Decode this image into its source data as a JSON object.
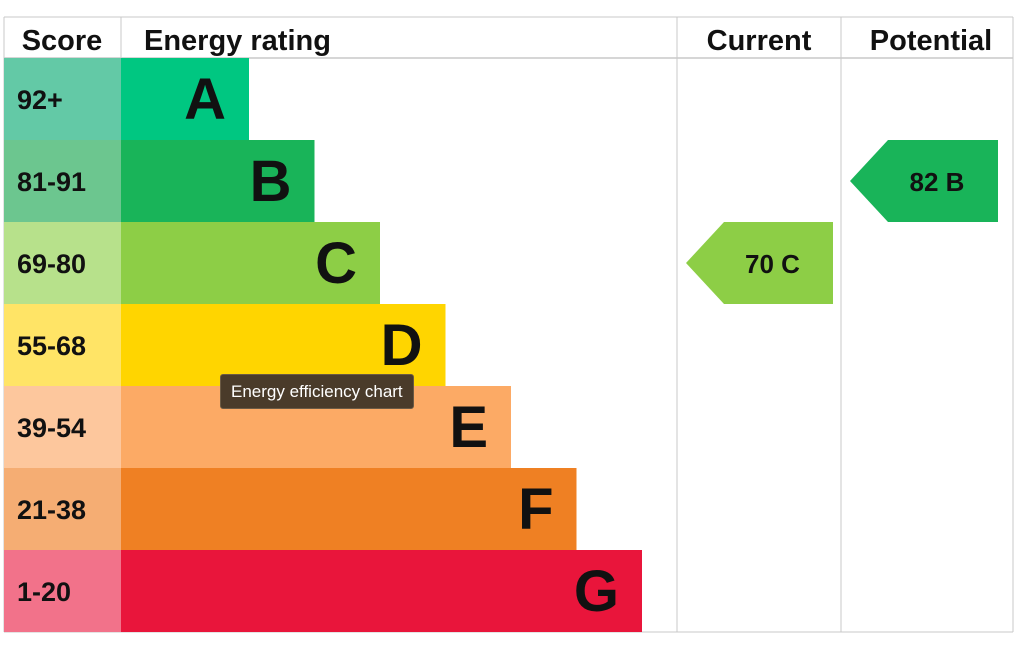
{
  "chart_data": {
    "type": "table",
    "headers": {
      "score": "Score",
      "rating": "Energy rating",
      "current": "Current",
      "potential": "Potential"
    },
    "bands": [
      {
        "range": "92+",
        "letter": "A",
        "color": "#00c781",
        "score_bg": "#63c9a6"
      },
      {
        "range": "81-91",
        "letter": "B",
        "color": "#19b459",
        "score_bg": "#6cc68f"
      },
      {
        "range": "69-80",
        "letter": "C",
        "color": "#8dce46",
        "score_bg": "#b7e18b"
      },
      {
        "range": "55-68",
        "letter": "D",
        "color": "#ffd500",
        "score_bg": "#ffe466"
      },
      {
        "range": "39-54",
        "letter": "E",
        "color": "#fcaa65",
        "score_bg": "#fdc79d"
      },
      {
        "range": "21-38",
        "letter": "F",
        "color": "#ef8023",
        "score_bg": "#f5ad73"
      },
      {
        "range": "1-20",
        "letter": "G",
        "color": "#e9153b",
        "score_bg": "#f2728a"
      }
    ],
    "current": {
      "value": 70,
      "band": "C",
      "label": "70 C",
      "color": "#8dce46"
    },
    "potential": {
      "value": 82,
      "band": "B",
      "label": "82 B",
      "color": "#19b459"
    }
  },
  "tooltip": {
    "text": "Energy efficiency chart"
  }
}
